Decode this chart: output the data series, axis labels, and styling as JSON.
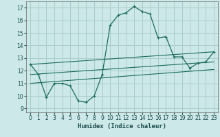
{
  "title": "",
  "xlabel": "Humidex (Indice chaleur)",
  "ylabel": "",
  "background_color": "#cce8e8",
  "grid_color": "#aacccc",
  "line_color": "#1a6b5a",
  "xlim": [
    -0.5,
    23.5
  ],
  "ylim": [
    8.7,
    17.5
  ],
  "yticks": [
    9,
    10,
    11,
    12,
    13,
    14,
    15,
    16,
    17
  ],
  "xticks": [
    0,
    1,
    2,
    3,
    4,
    5,
    6,
    7,
    8,
    9,
    10,
    11,
    12,
    13,
    14,
    15,
    16,
    17,
    18,
    19,
    20,
    21,
    22,
    23
  ],
  "main_curve_x": [
    0,
    1,
    2,
    3,
    4,
    5,
    6,
    7,
    8,
    9,
    10,
    11,
    12,
    13,
    14,
    15,
    16,
    17,
    18,
    19,
    20,
    21,
    22,
    23
  ],
  "main_curve_y": [
    12.5,
    11.7,
    9.9,
    11.0,
    11.0,
    10.8,
    9.6,
    9.5,
    10.0,
    11.7,
    15.6,
    16.4,
    16.6,
    17.1,
    16.7,
    16.5,
    14.6,
    14.7,
    13.1,
    13.1,
    12.2,
    12.6,
    12.7,
    13.5
  ],
  "line1_x": [
    0,
    23
  ],
  "line1_y": [
    12.5,
    13.5
  ],
  "line2_x": [
    0,
    23
  ],
  "line2_y": [
    11.7,
    12.7
  ],
  "line3_x": [
    0,
    23
  ],
  "line3_y": [
    11.0,
    12.1
  ]
}
